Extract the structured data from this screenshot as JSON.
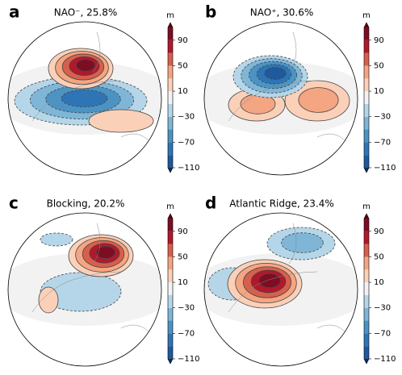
{
  "panels": [
    {
      "label": "a",
      "title": "NAO⁻, 25.8%",
      "unit": "m"
    },
    {
      "label": "b",
      "title": "NAO⁺, 30.6%",
      "unit": "m"
    },
    {
      "label": "c",
      "title": "Blocking, 20.2%",
      "unit": "m"
    },
    {
      "label": "d",
      "title": "Atlantic Ridge, 23.4%",
      "unit": "m"
    }
  ],
  "colorbar": {
    "lim": [
      -110,
      110
    ],
    "ticks": [
      90,
      50,
      10,
      {
        "value": -30,
        "label": "−30"
      },
      {
        "value": -70,
        "label": "−70"
      },
      {
        "value": -110,
        "label": "−110"
      }
    ],
    "colors": [
      "#1e5a9c",
      "#2e75b6",
      "#4b93c3",
      "#7fb6d7",
      "#b5d6e8",
      "#f2f2f2",
      "#fbd0b9",
      "#f4a582",
      "#d6604d",
      "#b2182b",
      "#7d0d23"
    ],
    "under": "#0b2f5a",
    "over": "#5a0013"
  }
}
